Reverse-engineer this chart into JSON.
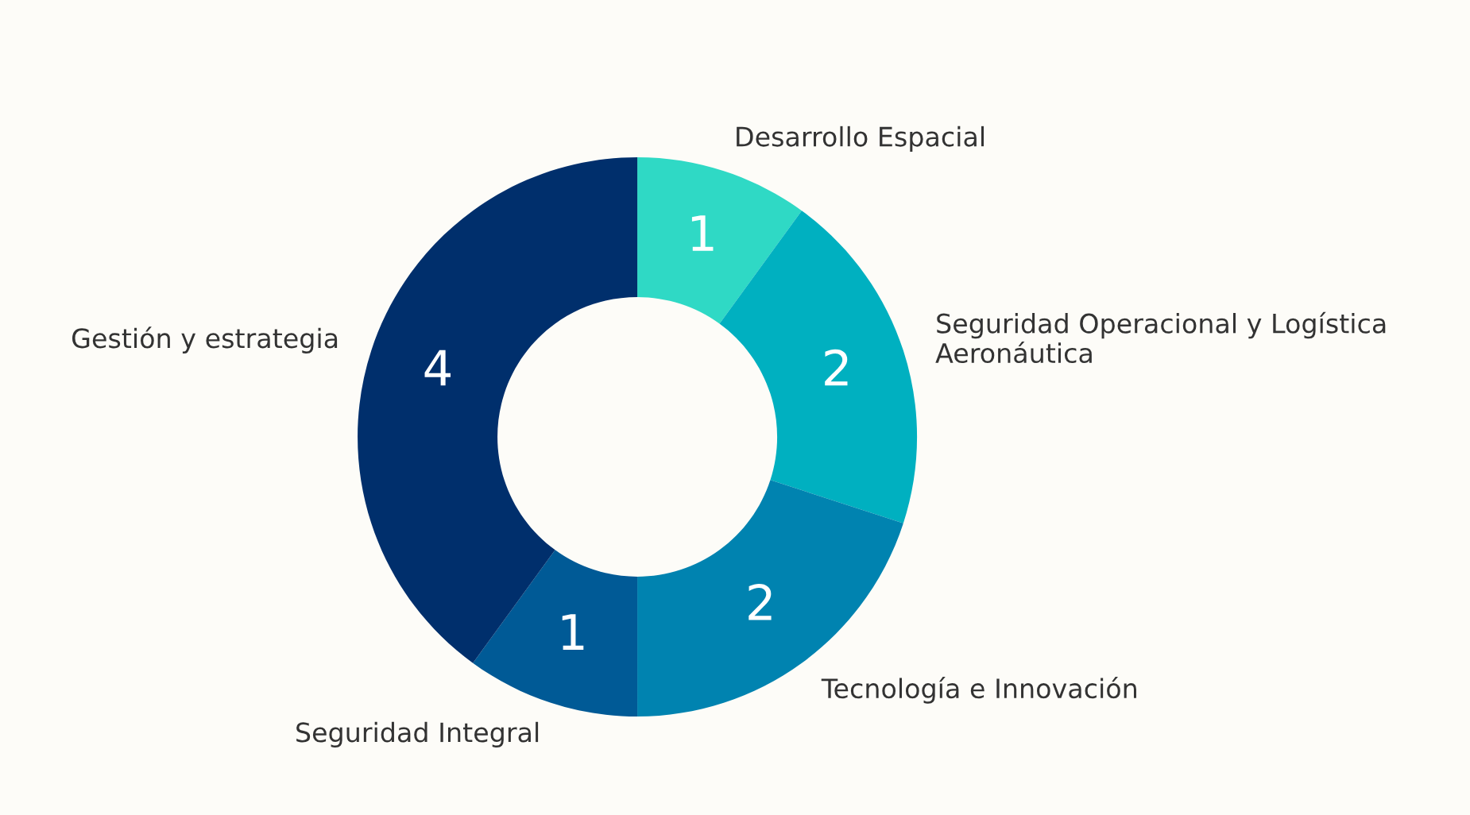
{
  "chart_data": {
    "type": "donut",
    "categories": [
      "Desarrollo Espacial",
      "Seguridad Operacional y Logística Aeronáutica",
      "Tecnología e Innovación",
      "Seguridad Integral",
      "Gestión y estrategia"
    ],
    "values": [
      1,
      2,
      2,
      1,
      4
    ],
    "colors": [
      "#2fd9c5",
      "#00b0c0",
      "#0083b0",
      "#005a96",
      "#002f6c"
    ],
    "data_labels": true,
    "legend": false
  }
}
